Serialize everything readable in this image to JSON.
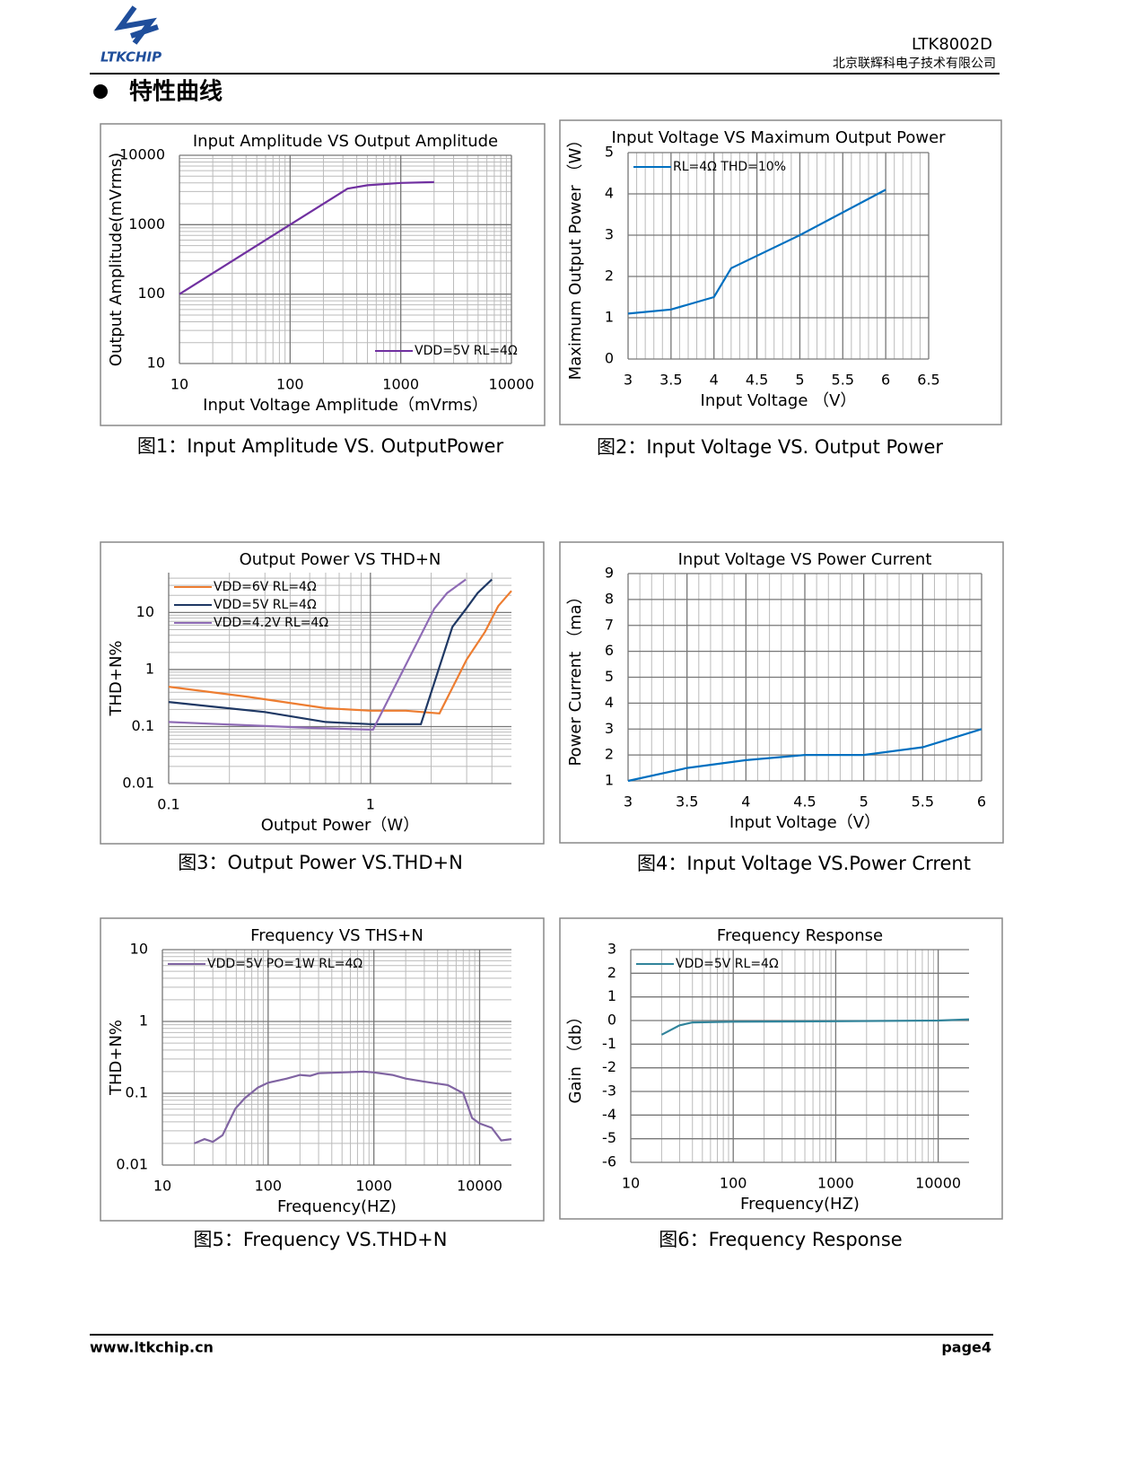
{
  "header": {
    "logo": "LTKCHIP",
    "part": "LTK8002D",
    "company": "北京联辉科电子技术有限公司"
  },
  "section_title": "特性曲线",
  "chart_data": [
    {
      "type": "line",
      "title": "Input Amplitude VS Output Amplitude",
      "xlabel": "Input Voltage Amplitude（mVrms）",
      "ylabel": "Output Amplitude(mVrms)",
      "xlog": true,
      "ylog": true,
      "xlim": [
        10,
        10000
      ],
      "ylim": [
        10,
        10000
      ],
      "xticks": [
        10,
        100,
        1000,
        10000
      ],
      "yticks": [
        10,
        100,
        1000,
        10000
      ],
      "grid": true,
      "minor_grid": [
        "x",
        "y"
      ],
      "legend": "lower right",
      "series": [
        {
          "name": "VDD=5V RL=4Ω",
          "color": "#7030a0",
          "x": [
            10,
            100,
            330,
            500,
            1000,
            2000
          ],
          "values": [
            100,
            1000,
            3300,
            3700,
            4000,
            4100
          ]
        }
      ],
      "caption": "图1：Input Amplitude VS. OutputPower"
    },
    {
      "type": "line",
      "title": "Input Voltage VS Maximum Output Power",
      "xlabel": "Input Voltage （V）",
      "ylabel": "Maximum Output Power （W）",
      "xlog": false,
      "ylog": false,
      "xlim": [
        3,
        6.5
      ],
      "ylim": [
        0,
        5
      ],
      "xticks": [
        3,
        3.5,
        4,
        4.5,
        5,
        5.5,
        6,
        6.5
      ],
      "yticks": [
        0,
        1,
        2,
        3,
        4,
        5
      ],
      "grid": true,
      "minor_grid": [
        "x"
      ],
      "legend": "upper left",
      "series": [
        {
          "name": "RL=4Ω THD=10%",
          "color": "#0070c0",
          "x": [
            3,
            3.5,
            4,
            4.2,
            5,
            6
          ],
          "values": [
            1.1,
            1.2,
            1.5,
            2.2,
            3.0,
            4.1
          ]
        }
      ],
      "caption": "图2：Input Voltage VS. Output Power"
    },
    {
      "type": "line",
      "title": "Output Power VS THD+N",
      "xlabel": "Output Power（W）",
      "ylabel": "THD+N%",
      "xlog": true,
      "ylog": true,
      "xlim": [
        0.1,
        5
      ],
      "ylim": [
        0.01,
        50
      ],
      "xticks": [
        0.1,
        1
      ],
      "yticks": [
        0.01,
        0.1,
        1,
        10
      ],
      "grid": true,
      "minor_grid": [
        "x",
        "y"
      ],
      "legend": "upper left",
      "series": [
        {
          "name": "VDD=6V RL=4Ω",
          "color": "#ed7d31",
          "x": [
            0.1,
            0.25,
            0.6,
            1,
            1.5,
            2.2,
            3,
            3.7,
            4.3,
            5
          ],
          "values": [
            0.5,
            0.33,
            0.21,
            0.19,
            0.19,
            0.17,
            1.5,
            4.6,
            13,
            24
          ]
        },
        {
          "name": "VDD=5V  RL=4Ω",
          "color": "#1f3864",
          "x": [
            0.1,
            0.3,
            0.6,
            1,
            1.78,
            2.55,
            3.0,
            3.4,
            4
          ],
          "values": [
            0.27,
            0.18,
            0.12,
            0.11,
            0.11,
            5.6,
            12,
            22,
            38
          ]
        },
        {
          "name": "VDD=4.2V RL=4Ω",
          "color": "#8e6bb5",
          "x": [
            0.1,
            0.5,
            1.03,
            2.07,
            2.4,
            2.97
          ],
          "values": [
            0.12,
            0.095,
            0.088,
            11.6,
            22,
            38
          ]
        }
      ],
      "caption": "图3：Output Power VS.THD+N"
    },
    {
      "type": "line",
      "title": "Input Voltage VS Power Current",
      "xlabel": "Input Voltage（V）",
      "ylabel": "Power Current （ma）",
      "xlog": false,
      "ylog": false,
      "xlim": [
        3,
        6
      ],
      "ylim": [
        1,
        9
      ],
      "xticks": [
        3,
        3.5,
        4,
        4.5,
        5,
        5.5,
        6
      ],
      "yticks": [
        1,
        2,
        3,
        4,
        5,
        6,
        7,
        8,
        9
      ],
      "grid": true,
      "minor_grid": [
        "x"
      ],
      "series": [
        {
          "color": "#0070c0",
          "x": [
            3,
            3.5,
            4,
            4.5,
            5,
            5.5,
            6
          ],
          "values": [
            1,
            1.5,
            1.8,
            2,
            2,
            2.3,
            3
          ]
        }
      ],
      "caption": "图4：Input Voltage VS.Power Crrent"
    },
    {
      "type": "line",
      "title": "Frequency VS THS+N",
      "xlabel": "Frequency(HZ)",
      "ylabel": "THD+N%",
      "xlog": true,
      "ylog": true,
      "xlim": [
        10,
        20000
      ],
      "ylim": [
        0.01,
        10
      ],
      "xticks": [
        10,
        100,
        1000,
        10000
      ],
      "yticks": [
        0.01,
        0.1,
        1,
        10
      ],
      "grid": true,
      "minor_grid": [
        "x",
        "y"
      ],
      "legend": "upper left",
      "series": [
        {
          "name": "VDD=5V PO=1W RL=4Ω",
          "color": "#8064a2",
          "x": [
            20,
            25,
            30,
            37,
            49,
            60,
            80,
            100,
            150,
            200,
            250,
            300,
            500,
            800,
            1000,
            1500,
            2000,
            3000,
            5000,
            7000,
            8500,
            10000,
            13000,
            16000,
            20000
          ],
          "values": [
            0.02,
            0.023,
            0.021,
            0.026,
            0.061,
            0.085,
            0.12,
            0.14,
            0.16,
            0.18,
            0.175,
            0.19,
            0.195,
            0.2,
            0.195,
            0.18,
            0.16,
            0.145,
            0.13,
            0.1,
            0.045,
            0.038,
            0.033,
            0.022,
            0.023
          ]
        }
      ],
      "caption": "图5：Frequency VS.THD+N"
    },
    {
      "type": "line",
      "title": "Frequency Response",
      "xlabel": "Frequency(HZ)",
      "ylabel": "Gain （db）",
      "xlog": true,
      "ylog": false,
      "xlim": [
        10,
        20000
      ],
      "ylim": [
        -6,
        3
      ],
      "xticks": [
        10,
        100,
        1000,
        10000
      ],
      "yticks": [
        -6,
        -5,
        -4,
        -3,
        -2,
        -1,
        0,
        1,
        2,
        3
      ],
      "grid": true,
      "minor_grid": [
        "x"
      ],
      "legend": "upper left",
      "series": [
        {
          "name": "VDD=5V RL=4Ω",
          "color": "#31849b",
          "x": [
            20,
            30,
            40,
            100,
            1000,
            10000,
            20000
          ],
          "values": [
            -0.6,
            -0.2,
            -0.08,
            -0.05,
            -0.03,
            0,
            0.05
          ]
        }
      ],
      "caption": "图6：Frequency Response"
    }
  ],
  "footer": {
    "url": "www.ltkchip.cn",
    "page": "page4"
  }
}
